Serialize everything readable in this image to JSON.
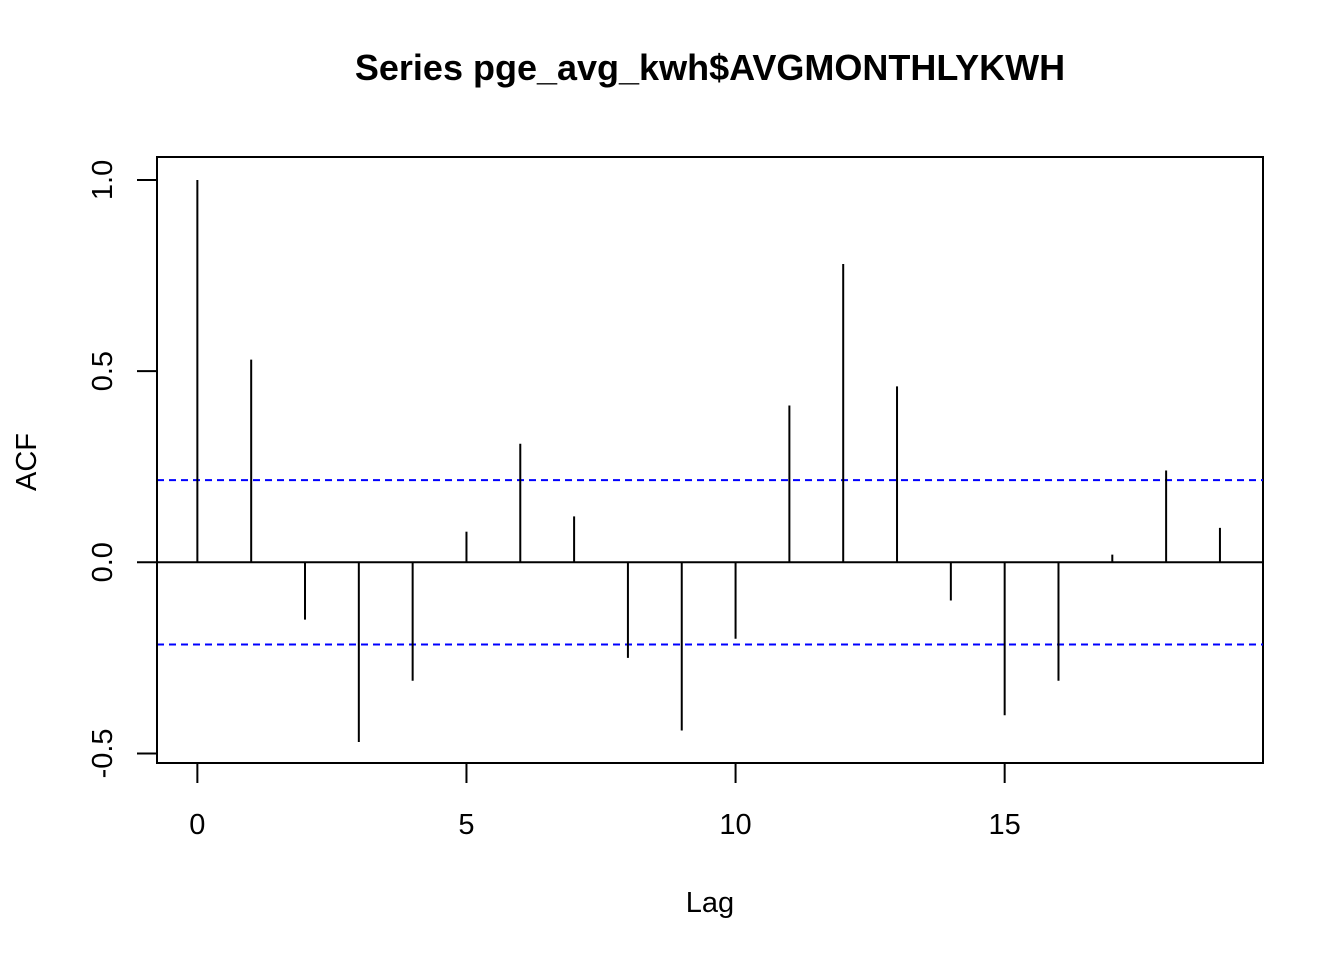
{
  "chart_data": {
    "type": "bar",
    "title": "Series  pge_avg_kwh$AVGMONTHLYKWH",
    "xlabel": "Lag",
    "ylabel": "ACF",
    "x": [
      0,
      1,
      2,
      3,
      4,
      5,
      6,
      7,
      8,
      9,
      10,
      11,
      12,
      13,
      14,
      15,
      16,
      17,
      18,
      19
    ],
    "values": [
      1.0,
      0.53,
      -0.15,
      -0.47,
      -0.31,
      0.08,
      0.31,
      0.12,
      -0.25,
      -0.44,
      -0.2,
      0.41,
      0.78,
      0.46,
      -0.1,
      -0.4,
      -0.31,
      0.02,
      0.24,
      0.09
    ],
    "confidence_bound": 0.215,
    "xlim": [
      -0.75,
      19.8
    ],
    "ylim": [
      -0.525,
      1.06
    ],
    "x_ticks": [
      0,
      5,
      10,
      15
    ],
    "x_tick_labels": [
      "0",
      "5",
      "10",
      "15"
    ],
    "y_ticks": [
      -0.5,
      0.0,
      0.5,
      1.0
    ],
    "y_tick_labels": [
      "-0.5",
      "0.0",
      "0.5",
      "1.0"
    ],
    "grid": false,
    "colors": {
      "bars": "#000000",
      "confidence": "#0000ff",
      "zero_line": "#000000"
    }
  }
}
